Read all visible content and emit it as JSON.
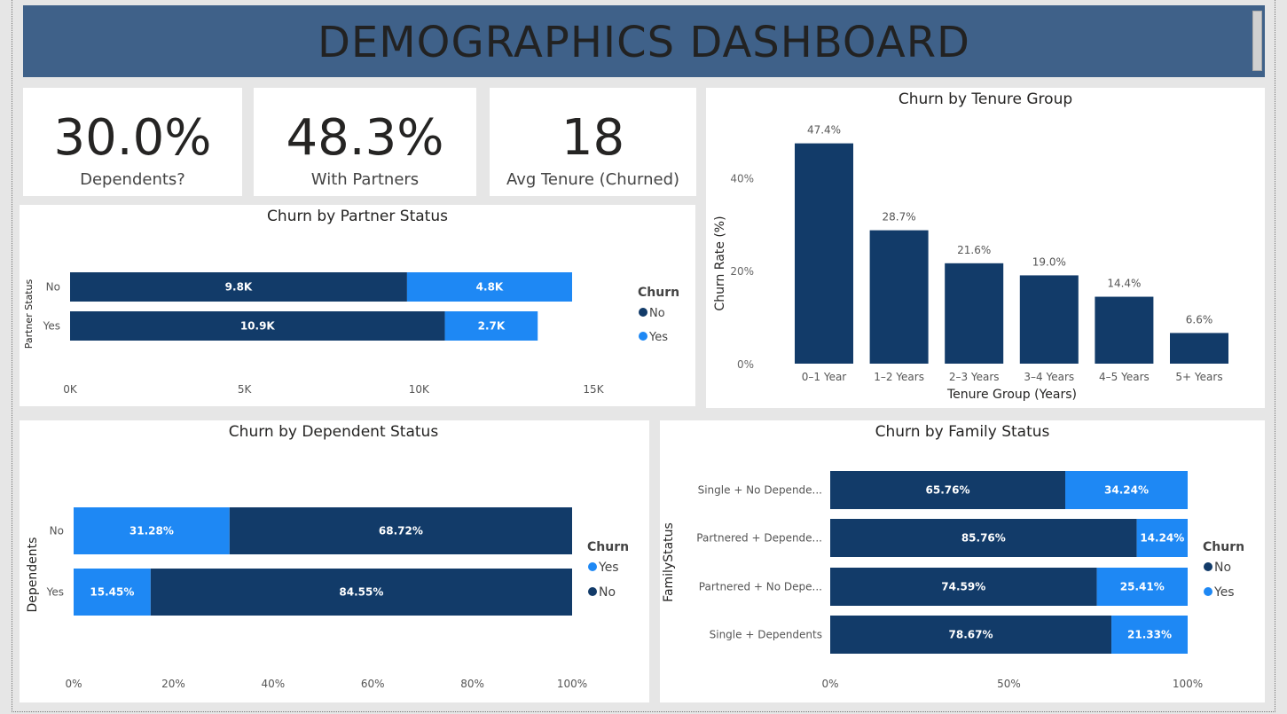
{
  "header": {
    "title": "DEMOGRAPHICS DASHBOARD"
  },
  "kpis": [
    {
      "value": "30.0%",
      "label": "Dependents?"
    },
    {
      "value": "48.3%",
      "label": "With Partners"
    },
    {
      "value": "18",
      "label": "Avg Tenure (Churned)"
    }
  ],
  "colors": {
    "no": "#123b69",
    "yes": "#1e88f4",
    "header": "#3f6189"
  },
  "chart_data": [
    {
      "type": "bar",
      "title": "Churn by Tenure Group",
      "xlabel": "Tenure Group (Years)",
      "ylabel": "Churn Rate (%)",
      "categories": [
        "0–1 Year",
        "1–2 Years",
        "2–3 Years",
        "3–4 Years",
        "4–5 Years",
        "5+ Years"
      ],
      "values": [
        47.4,
        28.7,
        21.6,
        19.0,
        14.4,
        6.6
      ],
      "data_labels": [
        "47.4%",
        "28.7%",
        "21.6%",
        "19.0%",
        "14.4%",
        "6.6%"
      ],
      "yticks": [
        "0%",
        "20%",
        "40%"
      ],
      "ylim": [
        0,
        50
      ]
    },
    {
      "type": "bar",
      "orientation": "horizontal-stacked",
      "title": "Churn by Partner Status",
      "ylabel": "Partner Status",
      "categories": [
        "No",
        "Yes"
      ],
      "series": [
        {
          "name": "No",
          "values": [
            9.8,
            10.9
          ],
          "labels": [
            "9.8K",
            "10.9K"
          ]
        },
        {
          "name": "Yes",
          "values": [
            4.8,
            2.7
          ],
          "labels": [
            "4.8K",
            "2.7K"
          ]
        }
      ],
      "xticks": [
        "0K",
        "5K",
        "10K",
        "15K"
      ],
      "xlim": [
        0,
        15
      ],
      "legend_title": "Churn",
      "legend": [
        "No",
        "Yes"
      ]
    },
    {
      "type": "bar",
      "orientation": "horizontal-stacked-100",
      "title": "Churn by Dependent Status",
      "ylabel": "Dependents",
      "categories": [
        "No",
        "Yes"
      ],
      "series": [
        {
          "name": "Yes",
          "values": [
            31.28,
            15.45
          ],
          "labels": [
            "31.28%",
            "15.45%"
          ]
        },
        {
          "name": "No",
          "values": [
            68.72,
            84.55
          ],
          "labels": [
            "68.72%",
            "84.55%"
          ]
        }
      ],
      "xticks": [
        "0%",
        "20%",
        "40%",
        "60%",
        "80%",
        "100%"
      ],
      "xlim": [
        0,
        100
      ],
      "legend_title": "Churn",
      "legend": [
        "Yes",
        "No"
      ]
    },
    {
      "type": "bar",
      "orientation": "horizontal-stacked-100",
      "title": "Churn by Family Status",
      "ylabel": "FamilyStatus",
      "categories": [
        "Single + No Depende...",
        "Partnered + Depende...",
        "Partnered + No Depe...",
        "Single + Dependents"
      ],
      "series": [
        {
          "name": "No",
          "values": [
            65.76,
            85.76,
            74.59,
            78.67
          ],
          "labels": [
            "65.76%",
            "85.76%",
            "74.59%",
            "78.67%"
          ]
        },
        {
          "name": "Yes",
          "values": [
            34.24,
            14.24,
            25.41,
            21.33
          ],
          "labels": [
            "34.24%",
            "14.24%",
            "25.41%",
            "21.33%"
          ]
        }
      ],
      "xticks": [
        "0%",
        "50%",
        "100%"
      ],
      "xlim": [
        0,
        100
      ],
      "legend_title": "Churn",
      "legend": [
        "No",
        "Yes"
      ]
    }
  ]
}
